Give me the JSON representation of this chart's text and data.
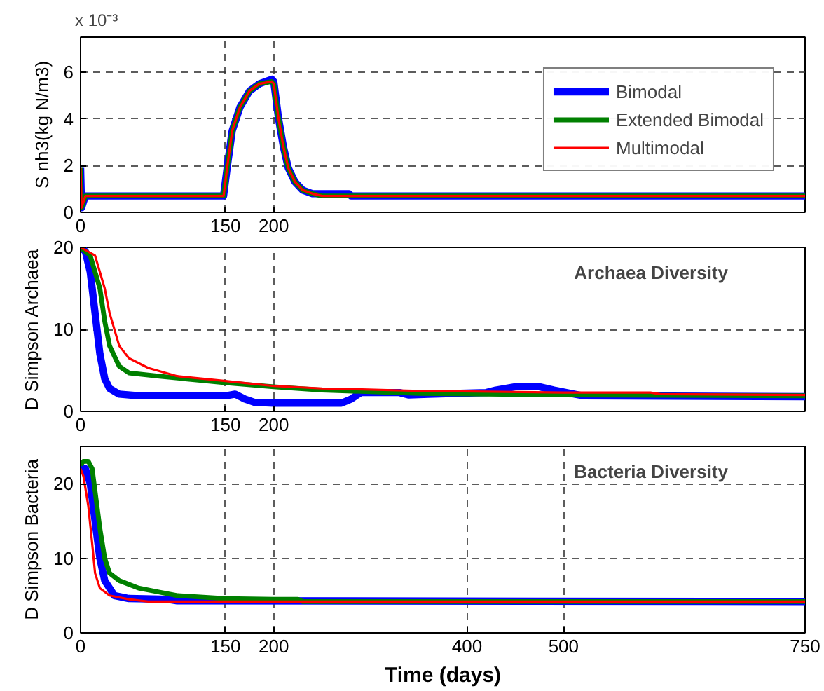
{
  "chart_data": [
    {
      "type": "line",
      "ylabel": "S nh3(kg N/m3)",
      "annotations": [
        "x 10⁻³"
      ],
      "xlim": [
        0,
        750
      ],
      "xticks": [
        0,
        150,
        200
      ],
      "ylim": [
        0,
        7.5
      ],
      "yticks": [
        0,
        2,
        4,
        6
      ],
      "grid": true,
      "legend": "top right",
      "series": [
        {
          "name": "Bimodal",
          "color": "#0000ff",
          "x": [
            0,
            1,
            5,
            148,
            152,
            157,
            165,
            175,
            185,
            198,
            200,
            205,
            210,
            215,
            222,
            230,
            240,
            278,
            280,
            750
          ],
          "values": [
            1.9,
            0.2,
            0.7,
            0.7,
            2.0,
            3.5,
            4.5,
            5.2,
            5.5,
            5.7,
            5.6,
            4.0,
            2.8,
            1.9,
            1.3,
            0.95,
            0.8,
            0.8,
            0.7,
            0.7
          ]
        },
        {
          "name": "Extended Bimodal",
          "color": "#008000",
          "x": [
            0,
            1,
            5,
            148,
            152,
            157,
            165,
            175,
            185,
            198,
            200,
            205,
            210,
            215,
            222,
            230,
            240,
            250,
            750
          ],
          "values": [
            1.9,
            0.2,
            0.7,
            0.7,
            2.0,
            3.5,
            4.5,
            5.2,
            5.5,
            5.6,
            5.5,
            4.0,
            2.8,
            1.9,
            1.3,
            0.95,
            0.8,
            0.7,
            0.7
          ]
        },
        {
          "name": "Multimodal",
          "color": "#ff0000",
          "x": [
            0,
            1,
            5,
            148,
            152,
            157,
            165,
            175,
            185,
            198,
            200,
            205,
            210,
            215,
            222,
            230,
            240,
            250,
            750
          ],
          "values": [
            1.9,
            0.2,
            0.7,
            0.7,
            2.0,
            3.5,
            4.5,
            5.2,
            5.5,
            5.6,
            5.5,
            4.0,
            2.8,
            1.9,
            1.3,
            0.95,
            0.8,
            0.7,
            0.7
          ]
        }
      ]
    },
    {
      "type": "line",
      "ylabel": "D Simpson Archaea",
      "annotations": [
        "Archaea Diversity"
      ],
      "xlim": [
        0,
        750
      ],
      "xticks": [
        0,
        150,
        200
      ],
      "ylim": [
        0,
        20
      ],
      "yticks": [
        0,
        10,
        20
      ],
      "grid": true,
      "series": [
        {
          "color": "#0000ff",
          "x": [
            0,
            5,
            10,
            15,
            20,
            25,
            30,
            40,
            60,
            150,
            160,
            170,
            180,
            200,
            270,
            280,
            290,
            330,
            340,
            360,
            420,
            430,
            450,
            475,
            490,
            520,
            750
          ],
          "values": [
            20,
            19.5,
            17,
            12,
            7,
            4,
            2.8,
            2.1,
            1.9,
            1.9,
            2.1,
            1.5,
            1.1,
            1.0,
            1.0,
            1.5,
            2.3,
            2.3,
            2.0,
            2.1,
            2.3,
            2.6,
            3.0,
            3.0,
            2.6,
            1.9,
            1.8
          ]
        },
        {
          "color": "#008000",
          "x": [
            0,
            10,
            20,
            25,
            30,
            40,
            50,
            80,
            150,
            200,
            250,
            350,
            500,
            750
          ],
          "values": [
            20,
            19,
            15,
            11,
            8,
            5.5,
            4.7,
            4.3,
            3.5,
            3.0,
            2.6,
            2.2,
            2.0,
            1.9
          ]
        },
        {
          "color": "#ff0000",
          "x": [
            0,
            15,
            25,
            30,
            40,
            50,
            70,
            100,
            150,
            200,
            250,
            350,
            500,
            590,
            600,
            750
          ],
          "values": [
            20,
            19,
            15,
            12,
            8,
            6.5,
            5.3,
            4.3,
            3.7,
            3.1,
            2.8,
            2.5,
            2.3,
            2.3,
            2.1,
            2.0
          ]
        }
      ]
    },
    {
      "type": "line",
      "xlabel": "Time (days)",
      "ylabel": "D Simpson Bacteria",
      "annotations": [
        "Bacteria Diversity"
      ],
      "xlim": [
        0,
        750
      ],
      "xticks": [
        0,
        150,
        200,
        400,
        500,
        750
      ],
      "ylim": [
        0,
        25
      ],
      "yticks": [
        0,
        10,
        20
      ],
      "grid": true,
      "series": [
        {
          "color": "#0000ff",
          "x": [
            0,
            5,
            10,
            15,
            20,
            25,
            35,
            50,
            90,
            100,
            750
          ],
          "values": [
            22,
            22,
            20,
            15,
            10,
            7,
            5,
            4.6,
            4.5,
            4.3,
            4.2
          ]
        },
        {
          "color": "#008000",
          "x": [
            0,
            3,
            8,
            12,
            15,
            20,
            25,
            30,
            40,
            60,
            80,
            100,
            150,
            200,
            225,
            230,
            750
          ],
          "values": [
            22.5,
            23,
            23,
            22,
            19,
            14,
            10,
            8,
            7,
            6,
            5.5,
            5,
            4.6,
            4.5,
            4.5,
            4.2,
            4.2
          ]
        },
        {
          "color": "#ff0000",
          "x": [
            0,
            3,
            8,
            12,
            15,
            20,
            30,
            50,
            70,
            750
          ],
          "values": [
            22,
            21,
            17,
            12,
            8,
            6,
            5,
            4.5,
            4.2,
            4.2
          ]
        }
      ]
    }
  ]
}
